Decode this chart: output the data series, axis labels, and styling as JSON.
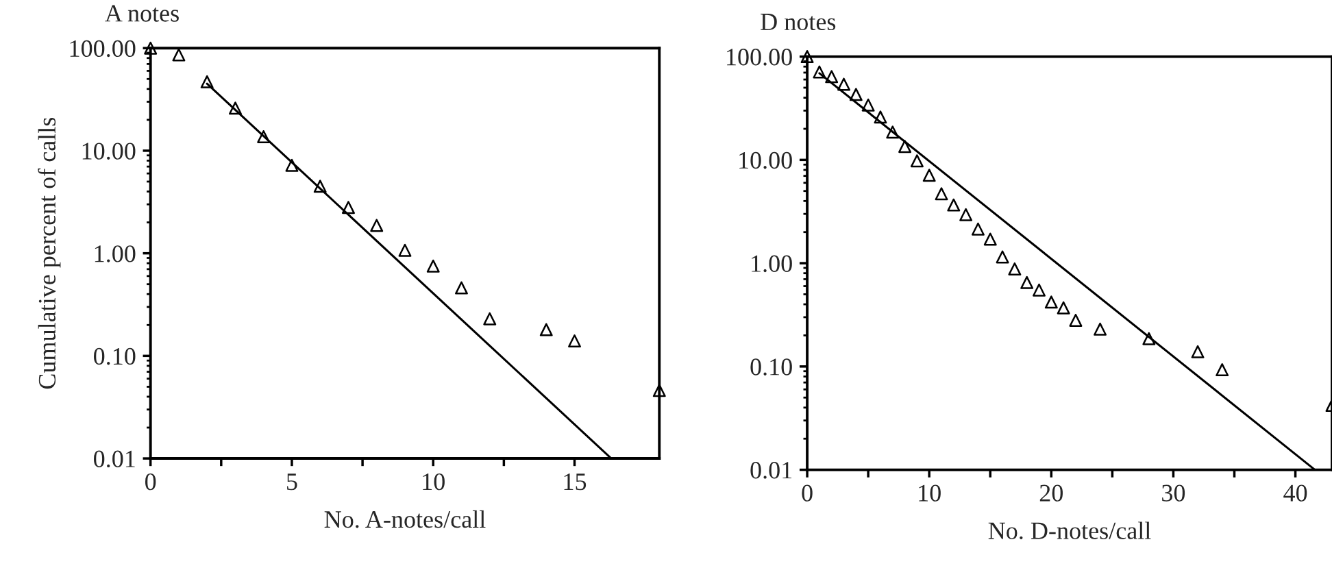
{
  "chart_data": [
    {
      "type": "scatter",
      "title": "A notes",
      "xlabel": "No. A-notes/call",
      "ylabel": "Cumulative percent of calls",
      "log": "y",
      "grid": false,
      "legend": false,
      "xlim": [
        0,
        18
      ],
      "xticks": [
        0,
        {
          "value": 2.5,
          "label": null
        },
        5,
        {
          "value": 7.5,
          "label": null
        },
        10,
        {
          "value": 12.5,
          "label": null
        },
        15
      ],
      "ylim": [
        0.01,
        100
      ],
      "yticks": [
        {
          "value": 0.01,
          "label": "0.01"
        },
        {
          "value": 0.1,
          "label": "0.10"
        },
        {
          "value": 1,
          "label": "1.00"
        },
        {
          "value": 10,
          "label": "10.00"
        },
        {
          "value": 100,
          "label": "100.00"
        }
      ],
      "series": [
        {
          "marker": "triangle",
          "color": "#000000",
          "x": [
            0,
            1,
            2,
            3,
            4,
            5,
            6,
            7,
            8,
            9,
            10,
            11,
            12,
            14,
            15,
            18
          ],
          "values": [
            100,
            86,
            47,
            26,
            13.7,
            7.2,
            4.5,
            2.8,
            1.87,
            1.07,
            0.75,
            0.46,
            0.23,
            0.18,
            0.14,
            0.046
          ]
        },
        {
          "type": "line",
          "marker": "none",
          "line_style": "solid",
          "color": "#000000",
          "x": [
            2,
            16.3
          ],
          "values": [
            45,
            0.01
          ]
        }
      ]
    },
    {
      "type": "scatter",
      "title": "D notes",
      "xlabel": "No. D-notes/call",
      "log": "y",
      "grid": false,
      "legend": false,
      "xlim": [
        0,
        43
      ],
      "xticks": [
        0,
        {
          "value": 5,
          "label": null
        },
        10,
        {
          "value": 15,
          "label": null
        },
        20,
        {
          "value": 25,
          "label": null
        },
        30,
        {
          "value": 35,
          "label": null
        },
        40
      ],
      "ylim": [
        0.01,
        100
      ],
      "yticks": [
        {
          "value": 0.01,
          "label": "0.01"
        },
        {
          "value": 0.1,
          "label": "0.10"
        },
        {
          "value": 1,
          "label": "1.00"
        },
        {
          "value": 10,
          "label": "10.00"
        },
        {
          "value": 100,
          "label": "100.00"
        }
      ],
      "series": [
        {
          "marker": "triangle",
          "color": "#000000",
          "x": [
            0,
            1,
            2,
            3,
            4,
            5,
            6,
            7,
            8,
            9,
            10,
            11,
            12,
            13,
            14,
            15,
            16,
            17,
            18,
            19,
            20,
            21,
            22,
            24,
            28,
            32,
            34,
            43
          ],
          "values": [
            100,
            71,
            64,
            54,
            43,
            34,
            26,
            18.6,
            13.5,
            9.8,
            7.1,
            4.7,
            3.66,
            2.95,
            2.14,
            1.71,
            1.15,
            0.88,
            0.65,
            0.55,
            0.42,
            0.37,
            0.28,
            0.23,
            0.186,
            0.139,
            0.093,
            0.042
          ]
        },
        {
          "type": "line",
          "marker": "none",
          "line_style": "solid",
          "color": "#000000",
          "x": [
            1,
            41.6
          ],
          "values": [
            69,
            0.01
          ]
        }
      ]
    }
  ]
}
